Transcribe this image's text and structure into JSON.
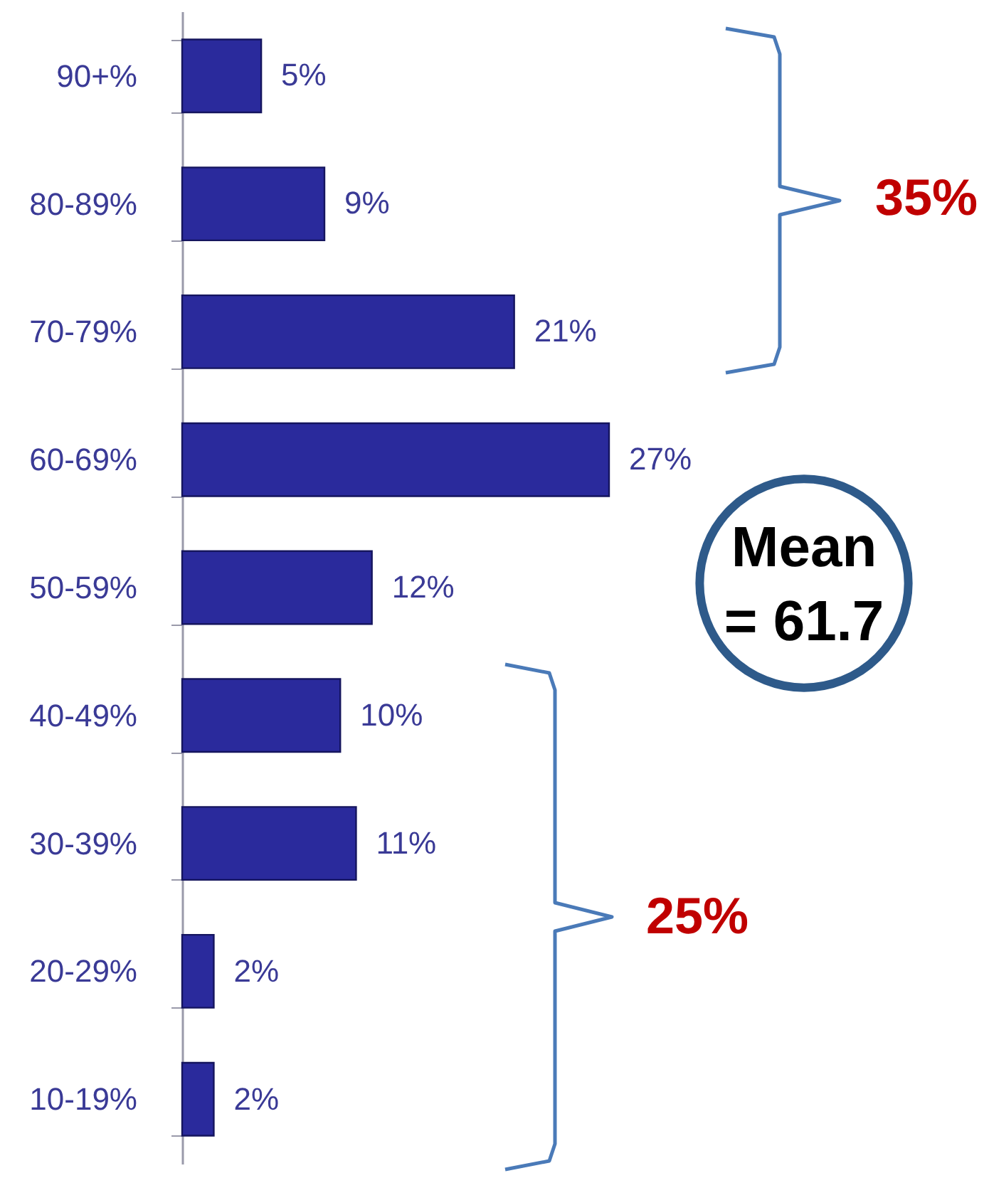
{
  "chart_data": {
    "type": "bar",
    "orientation": "horizontal",
    "categories": [
      "90+%",
      "80-89%",
      "70-79%",
      "60-69%",
      "50-59%",
      "40-49%",
      "30-39%",
      "20-29%",
      "10-19%"
    ],
    "values": [
      5,
      9,
      21,
      27,
      12,
      10,
      11,
      2,
      2
    ],
    "value_labels": [
      "5%",
      "9%",
      "21%",
      "27%",
      "12%",
      "10%",
      "11%",
      "2%",
      "2%"
    ],
    "color": "#2a2a9c",
    "annotations": [
      "35%",
      "25%",
      "Mean = 61.7"
    ],
    "grid": false
  }
}
